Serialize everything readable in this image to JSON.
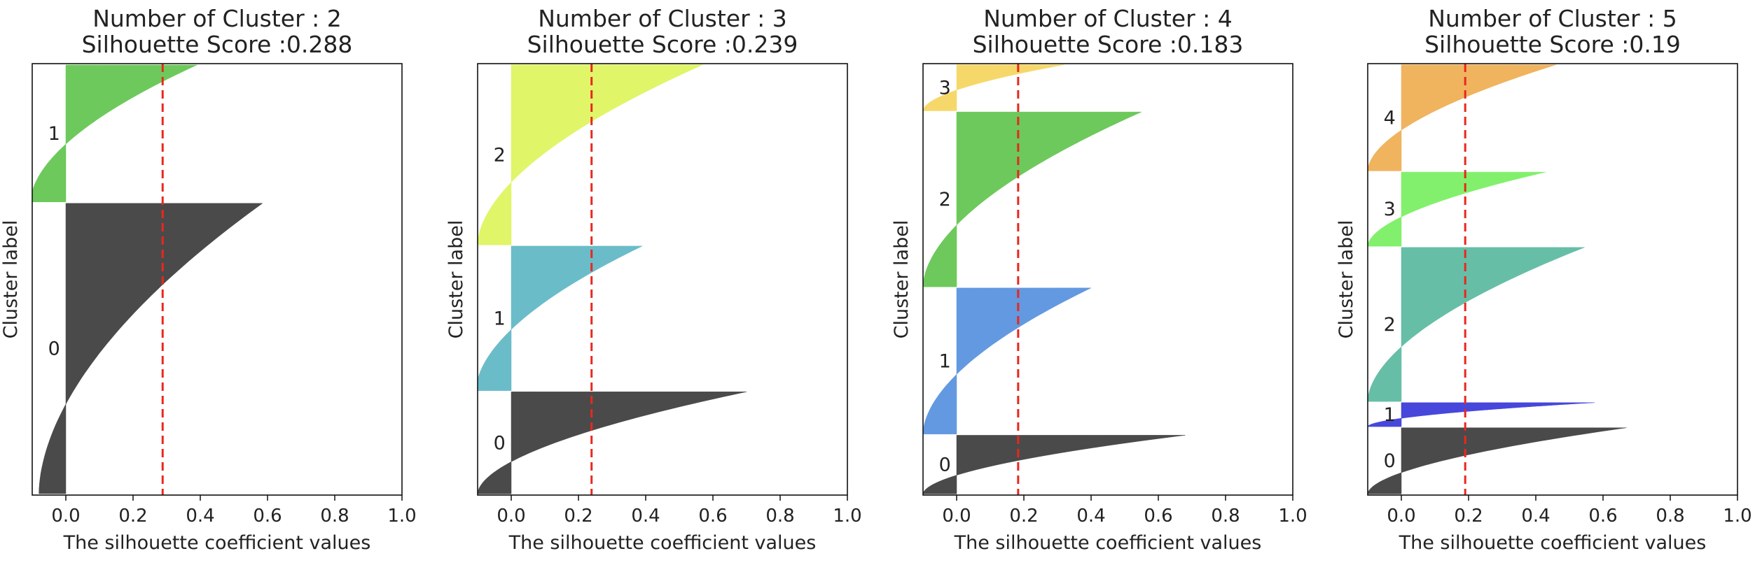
{
  "chart_data": [
    {
      "type": "silhouette",
      "title_line1": "Number of Cluster : 2",
      "title_line2": "Silhouette Score :0.288",
      "xlabel": "The silhouette coefficient values",
      "ylabel": "Cluster label",
      "xlim": [
        -0.1,
        1.0
      ],
      "xticks": [
        "0.0",
        "0.2",
        "0.4",
        "0.6",
        "0.8",
        "1.0"
      ],
      "avg_score": 0.288,
      "clusters": [
        {
          "label": "0",
          "size": 2120,
          "color": "#4a4a4a",
          "neg_min": -0.08,
          "pos_max": 0.585
        },
        {
          "label": "1",
          "size": 1000,
          "color": "#6dc95b",
          "neg_min": -0.105,
          "pos_max": 0.39
        }
      ]
    },
    {
      "type": "silhouette",
      "title_line1": "Number of Cluster : 3",
      "title_line2": "Silhouette Score :0.239",
      "xlabel": "The silhouette coefficient values",
      "ylabel": "Cluster label",
      "xlim": [
        -0.1,
        1.0
      ],
      "xticks": [
        "0.0",
        "0.2",
        "0.4",
        "0.6",
        "0.8",
        "1.0"
      ],
      "avg_score": 0.239,
      "clusters": [
        {
          "label": "0",
          "size": 890,
          "color": "#4a4a4a",
          "neg_min": -0.1,
          "pos_max": 0.7
        },
        {
          "label": "1",
          "size": 1260,
          "color": "#6bbcc9",
          "neg_min": -0.105,
          "pos_max": 0.39
        },
        {
          "label": "2",
          "size": 1570,
          "color": "#e1f569",
          "neg_min": -0.1,
          "pos_max": 0.57
        }
      ]
    },
    {
      "type": "silhouette",
      "title_line1": "Number of Cluster : 4",
      "title_line2": "Silhouette Score :0.183",
      "xlabel": "The silhouette coefficient values",
      "ylabel": "Cluster label",
      "xlim": [
        -0.1,
        1.0
      ],
      "xticks": [
        "0.0",
        "0.2",
        "0.4",
        "0.6",
        "0.8",
        "1.0"
      ],
      "avg_score": 0.183,
      "clusters": [
        {
          "label": "0",
          "size": 510,
          "color": "#4a4a4a",
          "neg_min": -0.1,
          "pos_max": 0.68
        },
        {
          "label": "1",
          "size": 1270,
          "color": "#6399e0",
          "neg_min": -0.1,
          "pos_max": 0.4
        },
        {
          "label": "2",
          "size": 1520,
          "color": "#6dc95b",
          "neg_min": -0.1,
          "pos_max": 0.55
        },
        {
          "label": "3",
          "size": 400,
          "color": "#f6d86a",
          "neg_min": -0.1,
          "pos_max": 0.32
        }
      ]
    },
    {
      "type": "silhouette",
      "title_line1": "Number of Cluster : 5",
      "title_line2": "Silhouette Score :0.19",
      "xlabel": "The silhouette coefficient values",
      "ylabel": "Cluster label",
      "xlim": [
        -0.1,
        1.0
      ],
      "xticks": [
        "0.0",
        "0.2",
        "0.4",
        "0.6",
        "0.8",
        "1.0"
      ],
      "avg_score": 0.19,
      "clusters": [
        {
          "label": "0",
          "size": 580,
          "color": "#4a4a4a",
          "neg_min": -0.1,
          "pos_max": 0.67
        },
        {
          "label": "1",
          "size": 210,
          "color": "#4747dc",
          "neg_min": -0.1,
          "pos_max": 0.575
        },
        {
          "label": "2",
          "size": 1350,
          "color": "#67bea7",
          "neg_min": -0.1,
          "pos_max": 0.545
        },
        {
          "label": "3",
          "size": 650,
          "color": "#82f06c",
          "neg_min": -0.1,
          "pos_max": 0.43
        },
        {
          "label": "4",
          "size": 930,
          "color": "#f0b35e",
          "neg_min": -0.1,
          "pos_max": 0.46
        }
      ]
    }
  ]
}
